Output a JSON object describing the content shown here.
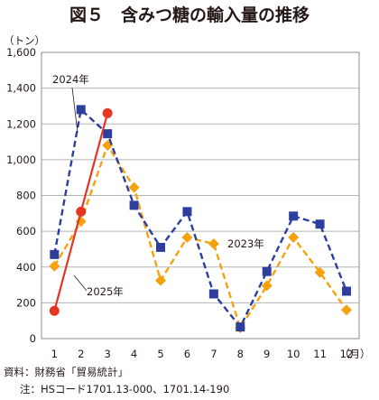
{
  "chart_data": {
    "type": "line",
    "title": "図５　含みつ糖の輸入量の推移",
    "yunit": "（トン）",
    "xunit": "（月）",
    "ylim": [
      0,
      1600
    ],
    "yticks": [
      0,
      200,
      400,
      600,
      800,
      1000,
      1200,
      1400,
      1600
    ],
    "ytick_labels": [
      "0",
      "200",
      "400",
      "600",
      "800",
      "1,000",
      "1,200",
      "1,400",
      "1,600"
    ],
    "categories": [
      "1",
      "2",
      "3",
      "4",
      "5",
      "6",
      "7",
      "8",
      "9",
      "10",
      "11",
      "12"
    ],
    "grid": "horizontal",
    "series": [
      {
        "name": "2023年",
        "color": "#f5a20d",
        "style": "dashed",
        "marker": "diamond",
        "values": [
          405,
          655,
          1080,
          845,
          325,
          565,
          530,
          60,
          295,
          565,
          370,
          160
        ]
      },
      {
        "name": "2024年",
        "color": "#2e3e9e",
        "style": "dashed",
        "marker": "square",
        "values": [
          470,
          1280,
          1145,
          745,
          510,
          710,
          250,
          65,
          375,
          685,
          640,
          265
        ]
      },
      {
        "name": "2025年",
        "color": "#e53524",
        "style": "solid",
        "marker": "circle",
        "values": [
          155,
          710,
          1260,
          null,
          null,
          null,
          null,
          null,
          null,
          null,
          null,
          null
        ]
      }
    ]
  },
  "footnotes": {
    "source": "資料：財務省「貿易統計」",
    "note": "注：HSコード1701.13-000、1701.14-190"
  }
}
